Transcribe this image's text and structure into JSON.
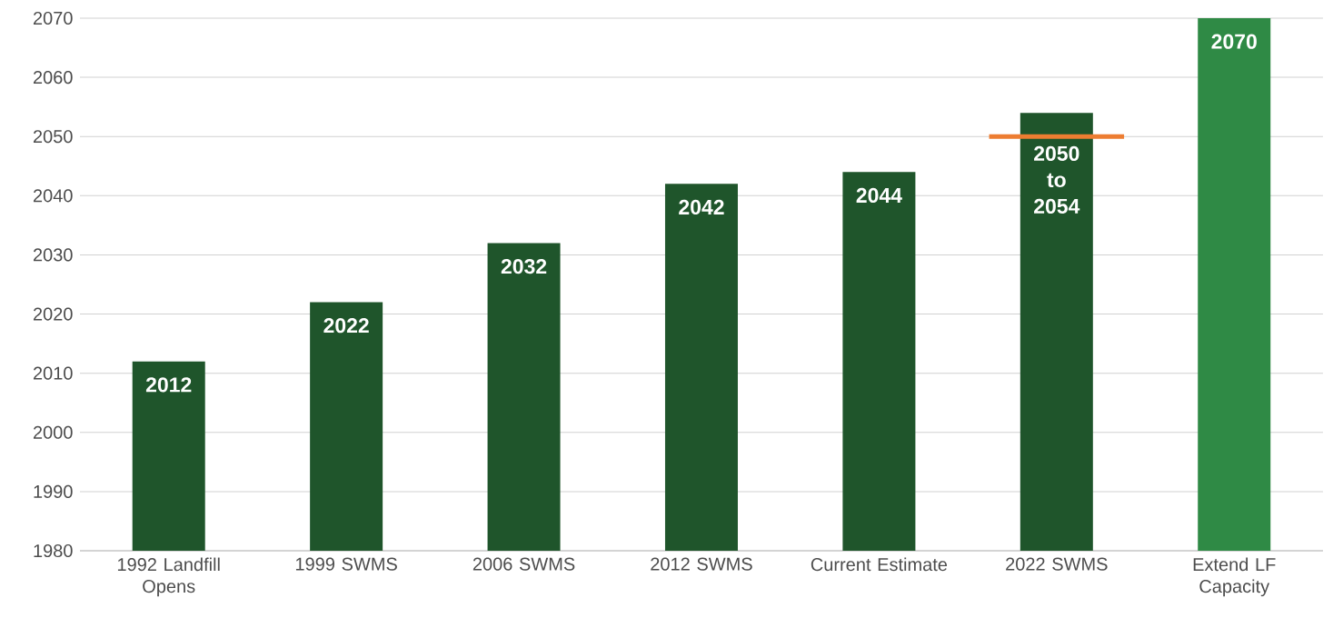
{
  "chart_data": {
    "type": "bar",
    "categories": [
      "1992 Landfill Opens",
      "1999 SWMS",
      "2006 SWMS",
      "2012 SWMS",
      "Current Estimate",
      "2022 SWMS",
      "Extend LF Capacity"
    ],
    "values": [
      2012,
      2022,
      2032,
      2042,
      2044,
      2054,
      2070
    ],
    "value_labels": [
      "2012",
      "2022",
      "2032",
      "2042",
      "2044",
      "2050 to 2054",
      "2070"
    ],
    "colors": [
      "#1f552b",
      "#1f552b",
      "#1f552b",
      "#1f552b",
      "#1f552b",
      "#1f552b",
      "#2f8a45"
    ],
    "ylim": [
      1980,
      2070
    ],
    "yticks": [
      1980,
      1990,
      2000,
      2010,
      2020,
      2030,
      2040,
      2050,
      2060,
      2070
    ],
    "grid": "y",
    "ref_lines": [
      {
        "axis": "y",
        "value": 2050,
        "color": "#ed7d31"
      }
    ]
  }
}
